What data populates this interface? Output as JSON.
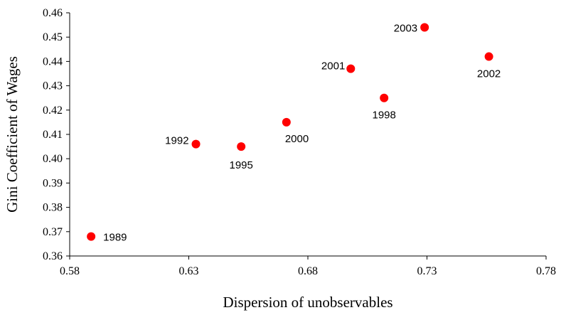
{
  "chart_data": {
    "type": "scatter",
    "x_label": "Dispersion of unobservables",
    "y_label": "Gini Coefficient of Wages",
    "x": [
      0.589,
      0.633,
      0.652,
      0.671,
      0.698,
      0.712,
      0.729,
      0.756
    ],
    "values": [
      0.368,
      0.406,
      0.405,
      0.415,
      0.437,
      0.425,
      0.454,
      0.442
    ],
    "point_labels": [
      "1989",
      "1992",
      "1995",
      "2000",
      "2001",
      "1998",
      "2003",
      "2002"
    ],
    "color": "#ff0000",
    "xlim": [
      0.58,
      0.78
    ],
    "xticks": [
      0.58,
      0.63,
      0.68,
      0.73,
      0.78
    ],
    "ylim": [
      0.36,
      0.46
    ],
    "yticks": [
      0.36,
      0.37,
      0.38,
      0.39,
      {
        "value": 0.4,
        "label": "0.40"
      },
      0.41,
      0.42,
      0.43,
      0.44,
      0.45,
      0.46
    ]
  }
}
